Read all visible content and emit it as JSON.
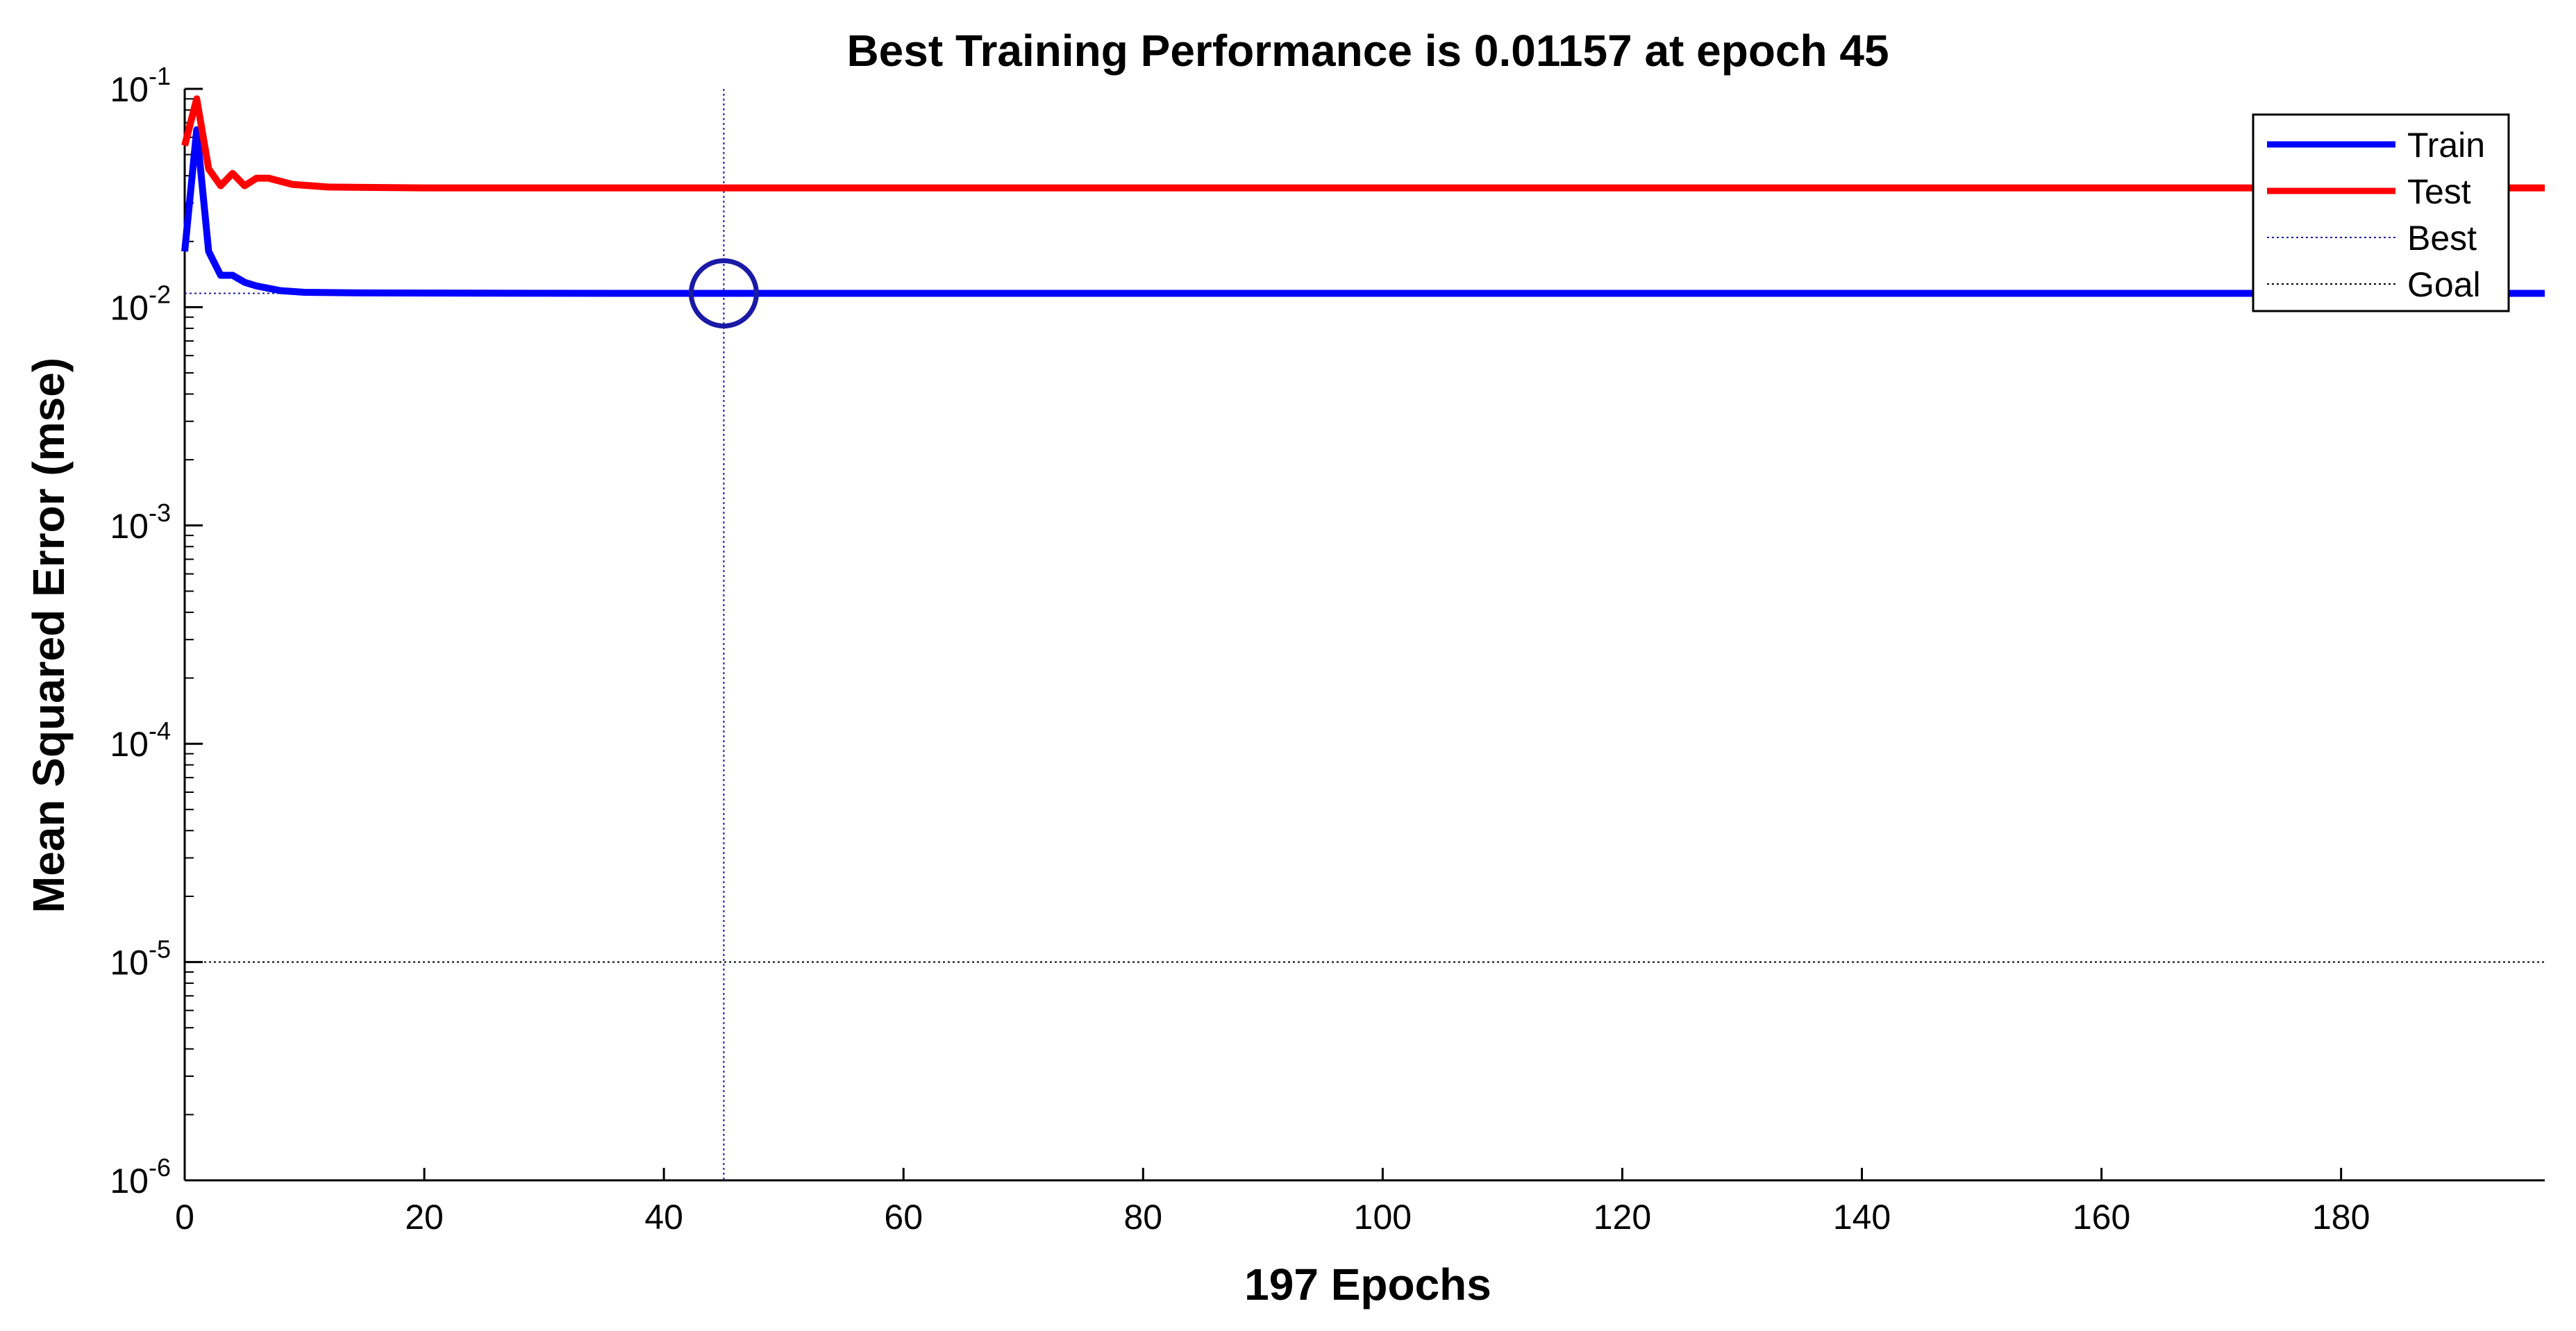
{
  "chart_data": {
    "type": "line",
    "title": "Best Training Performance is 0.01157 at epoch 45",
    "xlabel": "197 Epochs",
    "ylabel": "Mean Squared Error  (mse)",
    "xlim": [
      0,
      197
    ],
    "ylim": [
      1e-06,
      0.1
    ],
    "yscale": "log",
    "grid": false,
    "legend_position": "top-right",
    "x_ticks": [
      0,
      20,
      40,
      60,
      80,
      100,
      120,
      140,
      160,
      180
    ],
    "y_ticks": [
      {
        "value": 1e-06,
        "mantissa": "10",
        "exponent": "-6"
      },
      {
        "value": 1e-05,
        "mantissa": "10",
        "exponent": "-5"
      },
      {
        "value": 0.0001,
        "mantissa": "10",
        "exponent": "-4"
      },
      {
        "value": 0.001,
        "mantissa": "10",
        "exponent": "-3"
      },
      {
        "value": 0.01,
        "mantissa": "10",
        "exponent": "-2"
      },
      {
        "value": 0.1,
        "mantissa": "10",
        "exponent": "-1"
      }
    ],
    "series": [
      {
        "name": "Train",
        "color": "#0000ff",
        "style": "solid",
        "points": [
          [
            0,
            0.018
          ],
          [
            1,
            0.065
          ],
          [
            2,
            0.018
          ],
          [
            3,
            0.014
          ],
          [
            4,
            0.014
          ],
          [
            5,
            0.013
          ],
          [
            6,
            0.0125
          ],
          [
            8,
            0.0119
          ],
          [
            10,
            0.0117
          ],
          [
            15,
            0.01162
          ],
          [
            30,
            0.01158
          ],
          [
            45,
            0.01157
          ],
          [
            100,
            0.01157
          ],
          [
            197,
            0.01157
          ]
        ]
      },
      {
        "name": "Test",
        "color": "#ff0000",
        "style": "solid",
        "points": [
          [
            0,
            0.055
          ],
          [
            1,
            0.09
          ],
          [
            2,
            0.043
          ],
          [
            3,
            0.036
          ],
          [
            4,
            0.041
          ],
          [
            5,
            0.036
          ],
          [
            6,
            0.039
          ],
          [
            7,
            0.039
          ],
          [
            9,
            0.0365
          ],
          [
            12,
            0.0355
          ],
          [
            20,
            0.0352
          ],
          [
            45,
            0.0352
          ],
          [
            197,
            0.0352
          ]
        ]
      }
    ],
    "best": {
      "name": "Best",
      "epoch": 45,
      "value": 0.01157,
      "color": "#1a1aa6"
    },
    "goal": {
      "name": "Goal",
      "value": 1e-05,
      "color": "#000000"
    }
  }
}
